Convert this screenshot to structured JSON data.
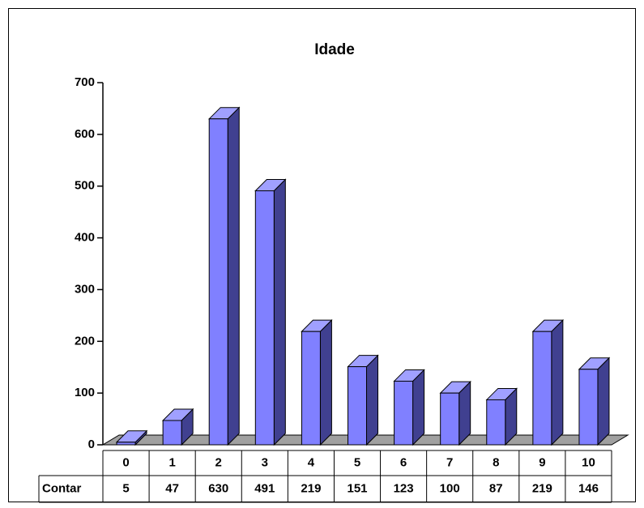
{
  "chart_data": {
    "type": "bar3d",
    "title": "Idade",
    "categories": [
      "0",
      "1",
      "2",
      "3",
      "4",
      "5",
      "6",
      "7",
      "8",
      "9",
      "10"
    ],
    "series": [
      {
        "name": "Contar",
        "color": "#8080ff",
        "values": [
          5,
          47,
          630,
          491,
          219,
          151,
          123,
          100,
          87,
          219,
          146
        ]
      }
    ],
    "ylim": [
      0,
      700
    ],
    "yticks": [
      0,
      100,
      200,
      300,
      400,
      500,
      600,
      700
    ],
    "data_table": true
  }
}
